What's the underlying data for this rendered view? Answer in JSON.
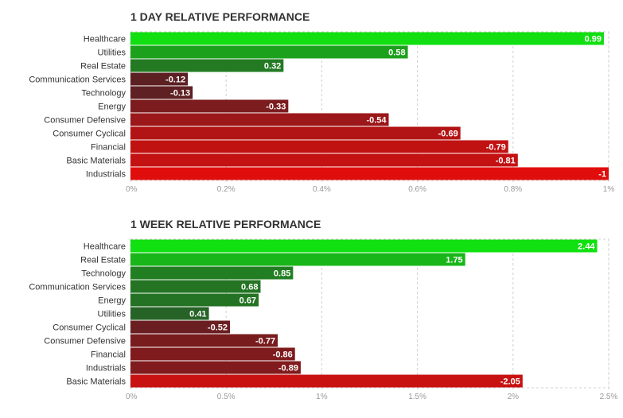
{
  "chart_data": [
    {
      "type": "bar",
      "orientation": "horizontal",
      "title": "1 DAY RELATIVE PERFORMANCE",
      "categories": [
        "Healthcare",
        "Utilities",
        "Real Estate",
        "Communication Services",
        "Technology",
        "Energy",
        "Consumer Defensive",
        "Consumer Cyclical",
        "Financial",
        "Basic Materials",
        "Industrials"
      ],
      "values": [
        0.99,
        0.58,
        0.32,
        -0.12,
        -0.13,
        -0.33,
        -0.54,
        -0.69,
        -0.79,
        -0.81,
        -1
      ],
      "value_labels": [
        "0.99",
        "0.58",
        "0.32",
        "-0.12",
        "-0.13",
        "-0.33",
        "-0.54",
        "-0.69",
        "-0.79",
        "-0.81",
        "-1"
      ],
      "xlim": [
        0,
        1
      ],
      "x_ticks": [
        0,
        0.2,
        0.4,
        0.6,
        0.8,
        1
      ],
      "x_tick_labels": [
        "0%",
        "0.2%",
        "0.4%",
        "0.6%",
        "0.8%",
        "1%"
      ],
      "grid": true,
      "bar_length": "absolute value"
    },
    {
      "type": "bar",
      "orientation": "horizontal",
      "title": "1 WEEK RELATIVE PERFORMANCE",
      "categories": [
        "Healthcare",
        "Real Estate",
        "Technology",
        "Communication Services",
        "Energy",
        "Utilities",
        "Consumer Cyclical",
        "Consumer Defensive",
        "Financial",
        "Industrials",
        "Basic Materials"
      ],
      "values": [
        2.44,
        1.75,
        0.85,
        0.68,
        0.67,
        0.41,
        -0.52,
        -0.77,
        -0.86,
        -0.89,
        -2.05
      ],
      "value_labels": [
        "2.44",
        "1.75",
        "0.85",
        "0.68",
        "0.67",
        "0.41",
        "-0.52",
        "-0.77",
        "-0.86",
        "-0.89",
        "-2.05"
      ],
      "xlim": [
        0,
        2.5
      ],
      "x_ticks": [
        0,
        0.5,
        1,
        1.5,
        2,
        2.5
      ],
      "x_tick_labels": [
        "0%",
        "0.5%",
        "1%",
        "1.5%",
        "2%",
        "2.5%"
      ],
      "grid": true,
      "bar_length": "absolute value"
    }
  ]
}
